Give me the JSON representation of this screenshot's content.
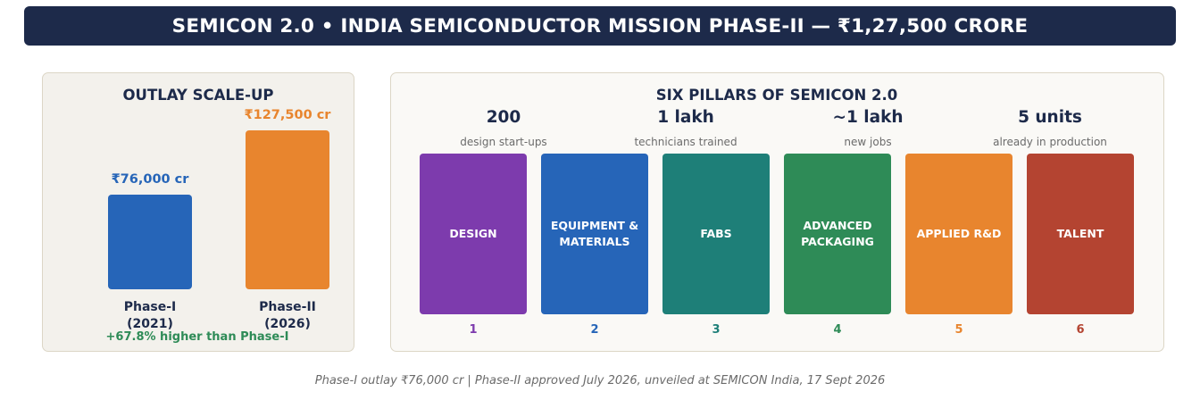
{
  "banner": {
    "title": "SEMICON 2.0  •  INDIA SEMICONDUCTOR MISSION PHASE-II  —  ₹1,27,500 CRORE"
  },
  "outlay": {
    "title": "OUTLAY SCALE-UP",
    "max_value": 127500,
    "bars": [
      {
        "value": 76000,
        "value_label": "₹76,000 cr",
        "label_line1": "Phase-I",
        "label_line2": "(2021)",
        "color": "#2665b8"
      },
      {
        "value": 127500,
        "value_label": "₹127,500 cr",
        "label_line1": "Phase-II",
        "label_line2": "(2026)",
        "color": "#e8852e"
      }
    ],
    "growth_note": "+67.8% higher than Phase-I"
  },
  "pillars_panel": {
    "title": "SIX PILLARS OF SEMICON 2.0",
    "stats": [
      {
        "value": "200",
        "desc": "design start-ups"
      },
      {
        "value": "1 lakh",
        "desc": "technicians trained"
      },
      {
        "value": "~1 lakh",
        "desc": "new jobs"
      },
      {
        "value": "5 units",
        "desc": "already in production"
      }
    ],
    "pillars": [
      {
        "number": "1",
        "label": "DESIGN",
        "color": "#7d3bad"
      },
      {
        "number": "2",
        "label": "EQUIPMENT & MATERIALS",
        "color": "#2665b8"
      },
      {
        "number": "3",
        "label": "FABS",
        "color": "#1e7f78"
      },
      {
        "number": "4",
        "label": "ADVANCED PACKAGING",
        "color": "#2e8b57"
      },
      {
        "number": "5",
        "label": "APPLIED R&D",
        "color": "#e8852e"
      },
      {
        "number": "6",
        "label": "TALENT",
        "color": "#b44431"
      }
    ]
  },
  "footnote": "Phase-I outlay ₹76,000 cr  |  Phase-II approved July 2026, unveiled at SEMICON India, 17 Sept 2026"
}
